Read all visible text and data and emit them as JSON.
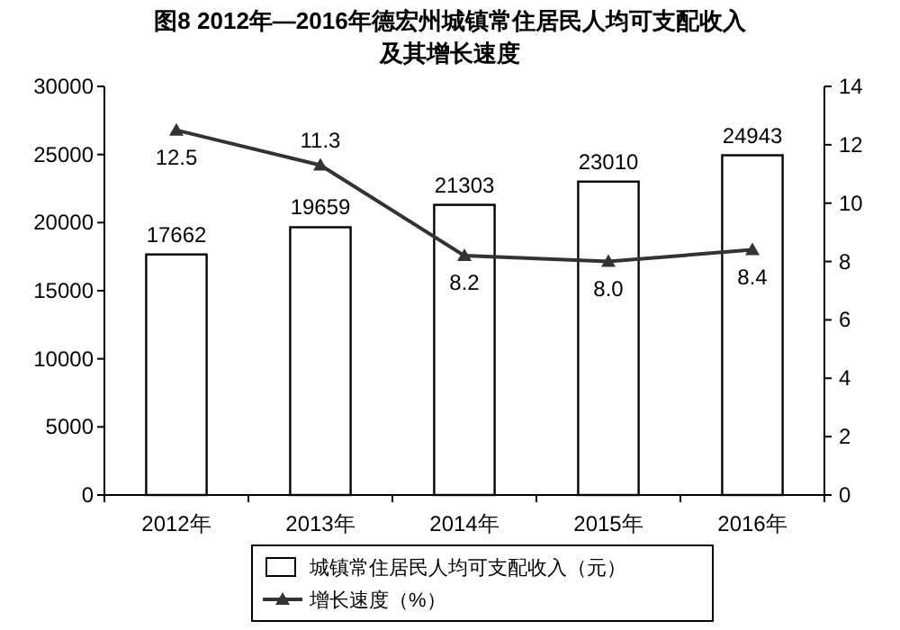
{
  "chart_data": {
    "type": "bar",
    "title": "图8  2012年—2016年德宏州城镇常住居民人均可支配收入",
    "subtitle": "及其增长速度",
    "categories": [
      "2012年",
      "2013年",
      "2014年",
      "2015年",
      "2016年"
    ],
    "series": [
      {
        "name": "城镇常住居民人均可支配收入（元）",
        "color": "#ffffff",
        "values": [
          17662,
          19659,
          21303,
          23010,
          24943
        ]
      },
      {
        "name": "增长速度（%）",
        "type": "line",
        "axis": "y2",
        "color": "#333333",
        "marker": "triangle",
        "values": [
          12.5,
          11.3,
          8.2,
          8.0,
          8.4
        ],
        "value_labels": [
          "12.5",
          "11.3",
          "8.2",
          "8.0",
          "8.4"
        ]
      }
    ],
    "ylim": [
      0,
      30000
    ],
    "yticks": [
      0,
      5000,
      10000,
      15000,
      20000,
      25000,
      30000
    ],
    "y2lim": [
      0,
      14
    ],
    "y2ticks": [
      0,
      2,
      4,
      6,
      8,
      10,
      12,
      14
    ],
    "data_labels": true,
    "grid": false,
    "legend": "bottom"
  }
}
